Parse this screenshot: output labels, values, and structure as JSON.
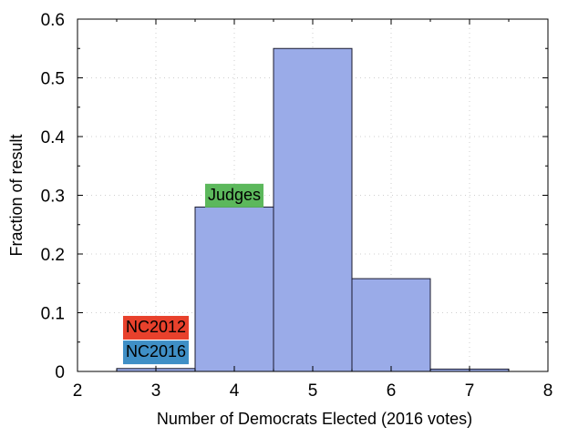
{
  "chart_data": {
    "type": "bar",
    "title": "",
    "xlabel": "Number of Democrats Elected (2016 votes)",
    "ylabel": "Fraction of result",
    "xlim": [
      2,
      8
    ],
    "ylim": [
      0,
      0.6
    ],
    "x_ticks": [
      "2",
      "3",
      "4",
      "5",
      "6",
      "7",
      "8"
    ],
    "y_ticks": [
      "0",
      "0.1",
      "0.2",
      "0.3",
      "0.4",
      "0.5",
      "0.6"
    ],
    "bins": [
      {
        "x": 3,
        "value": 0.005
      },
      {
        "x": 4,
        "value": 0.28
      },
      {
        "x": 5,
        "value": 0.55
      },
      {
        "x": 6,
        "value": 0.158
      },
      {
        "x": 7,
        "value": 0.004
      }
    ],
    "grid": true,
    "bar_color": "#9aabe8",
    "bar_edge_color": "#1a1a2e",
    "annotations": [
      {
        "text": "NC2012",
        "x": 3,
        "y": 0.076,
        "color": "#e8412c"
      },
      {
        "text": "NC2016",
        "x": 3,
        "y": 0.034,
        "color": "#3f8fc6"
      },
      {
        "text": "Judges",
        "x": 4,
        "y": 0.301,
        "color": "#5cb85c"
      }
    ]
  }
}
